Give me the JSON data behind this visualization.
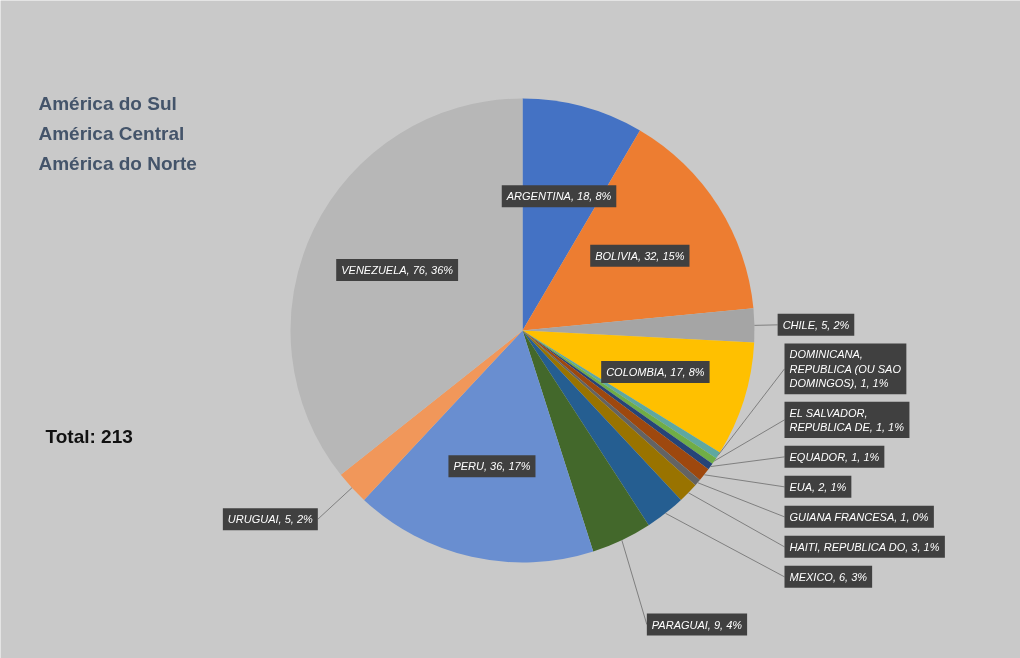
{
  "chart_data": {
    "type": "pie",
    "categories": [
      "ARGENTINA",
      "BOLIVIA",
      "CHILE",
      "COLOMBIA",
      "DOMINICANA, REPUBLICA (OU SAO DOMINGOS)",
      "EL SALVADOR, REPUBLICA DE",
      "EQUADOR",
      "EUA",
      "GUIANA FRANCESA",
      "HAITI, REPUBLICA DO",
      "MEXICO",
      "PARAGUAI",
      "PERU",
      "URUGUAI",
      "VENEZUELA"
    ],
    "values": [
      18,
      32,
      5,
      17,
      1,
      1,
      1,
      2,
      1,
      3,
      6,
      9,
      36,
      5,
      76
    ],
    "value_labels": [
      "18, 8%",
      "32, 15%",
      "5, 2%",
      "17, 8%",
      "1, 1%",
      "1, 1%",
      "1, 1%",
      "2, 1%",
      "1, 0%",
      "3, 1%",
      "6, 3%",
      "9, 4%",
      "36, 17%",
      "5, 2%",
      "76, 36%"
    ],
    "colors": [
      "#4472c4",
      "#ed7d31",
      "#a5a5a5",
      "#ffc000",
      "#5fa8a0",
      "#70ad47",
      "#264478",
      "#9e480e",
      "#636363",
      "#997300",
      "#255e91",
      "#43682b",
      "#698ed0",
      "#f1975a",
      "#b7b7b7"
    ],
    "annotations": [
      "América do Sul",
      "América Central",
      "América do Norte",
      "Total:  213"
    ]
  }
}
